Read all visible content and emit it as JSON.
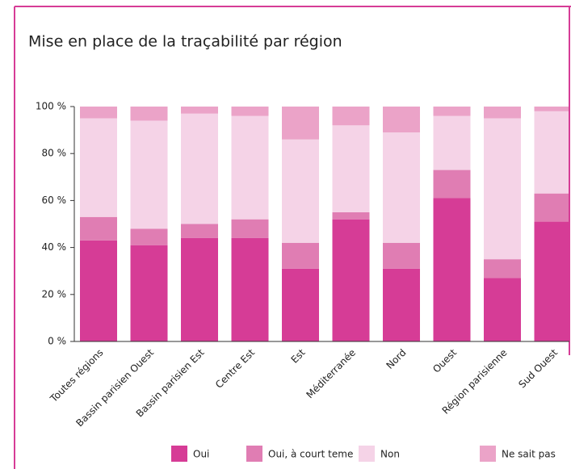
{
  "chart_data": {
    "type": "stacked_bar",
    "title": "Mise en place de la traçabilité par région",
    "categories": [
      "Toutes régions",
      "Bassin parisien Ouest",
      "Bassin parisien Est",
      "Centre Est",
      "Est",
      "Méditerranée",
      "Nord",
      "Ouest",
      "Région parisienne",
      "Sud Ouest"
    ],
    "series": [
      {
        "name": "Oui",
        "color": "#d63c96",
        "values": [
          43,
          41,
          44,
          44,
          31,
          52,
          31,
          61,
          27,
          51
        ]
      },
      {
        "name": "Oui, à court teme",
        "color": "#e07db3",
        "values": [
          10,
          7,
          6,
          8,
          11,
          3,
          11,
          12,
          8,
          12
        ]
      },
      {
        "name": "Non",
        "color": "#f5d3e7",
        "values": [
          42,
          46,
          47,
          44,
          44,
          37,
          47,
          23,
          60,
          35
        ]
      },
      {
        "name": "Ne sait pas",
        "color": "#eba3c8",
        "values": [
          5,
          6,
          3,
          4,
          14,
          8,
          11,
          4,
          5,
          2
        ]
      }
    ],
    "ylim": [
      0,
      100
    ],
    "yticks": [
      {
        "value": 0,
        "label": "0 %"
      },
      {
        "value": 20,
        "label": "20 %"
      },
      {
        "value": 40,
        "label": "40 %"
      },
      {
        "value": 60,
        "label": "60 %"
      },
      {
        "value": 80,
        "label": "80 %"
      },
      {
        "value": 100,
        "label": "100 %"
      }
    ],
    "legend": "bottom"
  }
}
